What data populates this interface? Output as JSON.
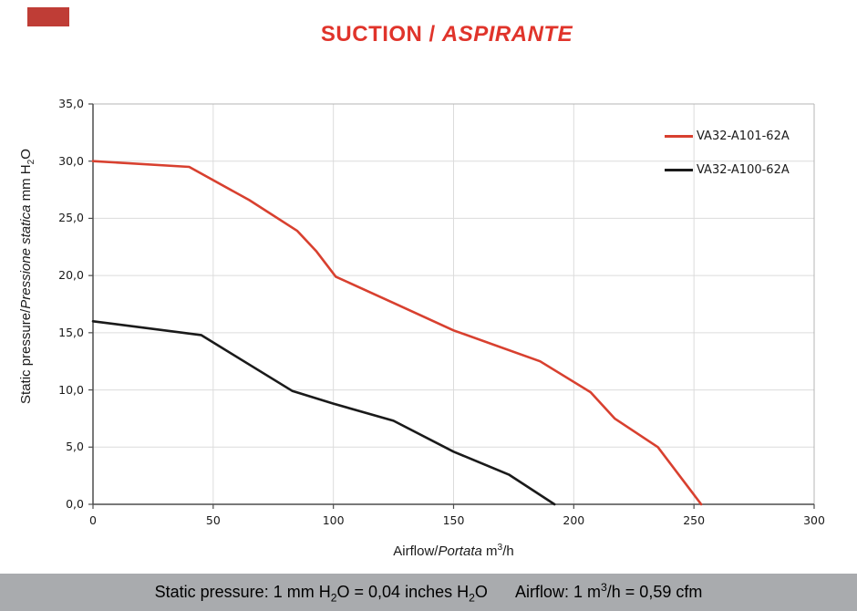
{
  "page": {
    "corner_marker_color": "#bf3d36",
    "title_color": "#e0342b"
  },
  "title": {
    "part1": "SUCTION /",
    "part2": "ASPIRANTE"
  },
  "axes": {
    "y_label": {
      "normal1": "Static pressure/",
      "italic": "Pressione statica",
      "normal2": " mm  H",
      "sub": "2",
      "normal3": "O"
    },
    "x_label": {
      "normal1": "Airflow/",
      "italic": "Portata",
      "normal2": " m",
      "sup": "3",
      "normal3": "/h"
    }
  },
  "chart_data": {
    "type": "line",
    "title": "SUCTION / ASPIRANTE",
    "xlabel": "Airflow/Portata m3/h",
    "ylabel": "Static pressure/Pressione statica mm H2O",
    "xlim": [
      0,
      300
    ],
    "ylim": [
      0,
      35
    ],
    "xticks": [
      0,
      50,
      100,
      150,
      200,
      250,
      300
    ],
    "xtick_labels": [
      "0",
      "50",
      "100",
      "150",
      "200",
      "250",
      "300"
    ],
    "yticks": [
      0,
      5,
      10,
      15,
      20,
      25,
      30,
      35
    ],
    "ytick_labels": [
      "0,0",
      "5,0",
      "10,0",
      "15,0",
      "20,0",
      "25,0",
      "30,0",
      "35,0"
    ],
    "grid": true,
    "legend_position": "inside top-right",
    "series": [
      {
        "name": "VA32-A101-62A",
        "color": "#d8402f",
        "points": [
          [
            0,
            30.0
          ],
          [
            40,
            29.5
          ],
          [
            65,
            26.6
          ],
          [
            85,
            23.9
          ],
          [
            93,
            22.1
          ],
          [
            101,
            19.9
          ],
          [
            125,
            17.6
          ],
          [
            150,
            15.2
          ],
          [
            186,
            12.5
          ],
          [
            207,
            9.8
          ],
          [
            217,
            7.5
          ],
          [
            235,
            5.0
          ],
          [
            253,
            0.0
          ]
        ]
      },
      {
        "name": "VA32-A100-62A",
        "color": "#1a1a1a",
        "points": [
          [
            0,
            16.0
          ],
          [
            45,
            14.8
          ],
          [
            83,
            9.9
          ],
          [
            100,
            8.8
          ],
          [
            125,
            7.3
          ],
          [
            150,
            4.6
          ],
          [
            173,
            2.6
          ],
          [
            192,
            0.0
          ]
        ]
      }
    ],
    "style": {
      "grid_color": "#dcdcdc",
      "border_color": "#b4b4b4",
      "axis_color": "#4d4d4d"
    }
  },
  "footer": {
    "bg": "#a9abae",
    "s1a": "Static pressure: 1 mm H",
    "s1sub1": "2",
    "s1b": "O = 0,04 inches H",
    "s1sub2": "2",
    "s1c": "O",
    "s2a": "Airflow: 1 m",
    "s2sup": "3",
    "s2b": "/h = 0,59 cfm"
  }
}
